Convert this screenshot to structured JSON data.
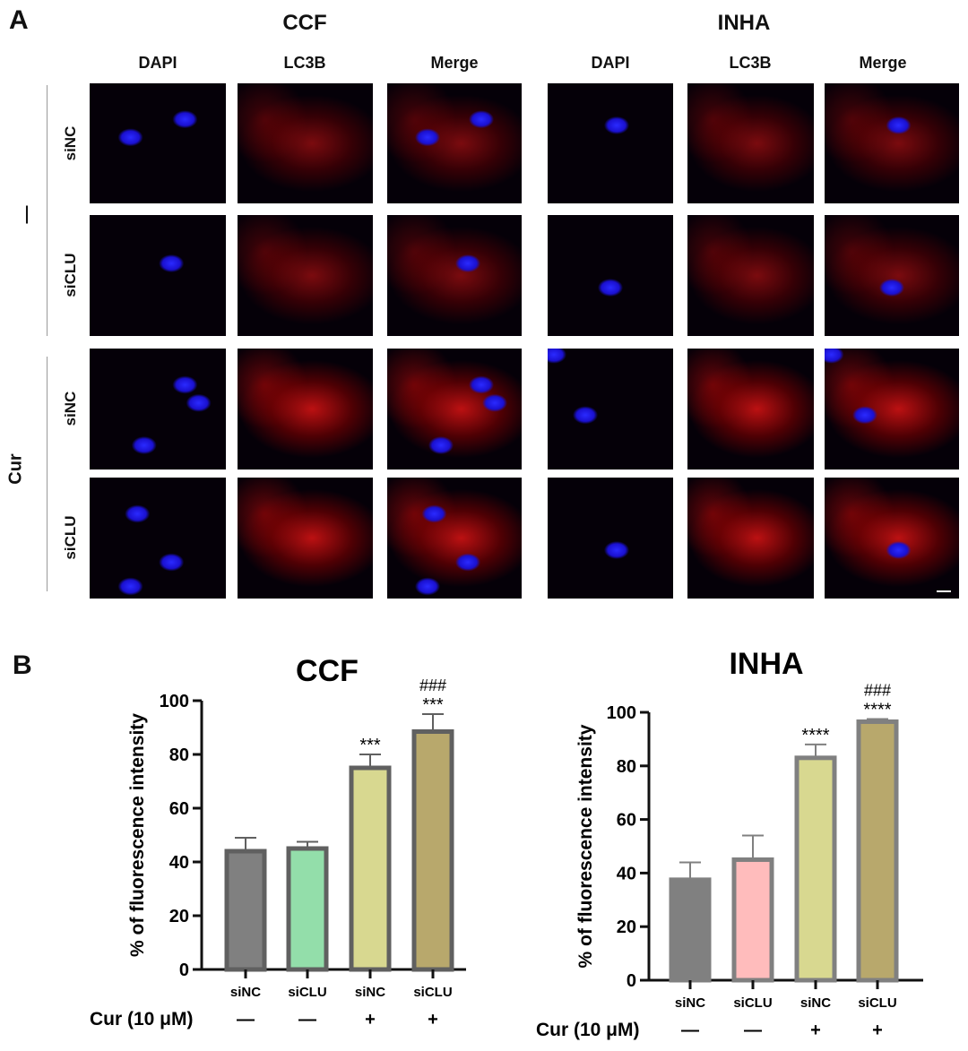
{
  "panel_a": {
    "letter": "A",
    "groups": [
      {
        "title": "CCF",
        "columns": [
          "DAPI",
          "LC3B",
          "Merge"
        ]
      },
      {
        "title": "INHA",
        "columns": [
          "DAPI",
          "LC3B",
          "Merge"
        ]
      }
    ],
    "rows": [
      "siNC",
      "siCLU",
      "siNC",
      "siCLU"
    ],
    "treatments": [
      "—",
      "Cur"
    ]
  },
  "panel_b": {
    "letter": "B"
  },
  "chart_data": [
    {
      "type": "bar",
      "title": "CCF",
      "ylabel": "% of fluorescence intensity",
      "xlabel": "",
      "ylim": [
        0,
        100
      ],
      "yticks": [
        "0",
        "20",
        "40",
        "60",
        "80",
        "100"
      ],
      "categories": [
        "siNC",
        "siCLU",
        "siNC",
        "siCLU"
      ],
      "treatment_label": "Cur (10 μM)",
      "treatment": [
        "—",
        "—",
        "+",
        "+"
      ],
      "values": [
        44,
        45,
        75,
        88.5
      ],
      "error_upper": [
        49,
        47.5,
        80,
        95
      ],
      "significance": [
        "",
        "",
        "***",
        "***"
      ],
      "significance2": [
        "",
        "",
        "",
        "###"
      ],
      "colors": [
        "#808080",
        "#93deaa",
        "#d8d890",
        "#b8a86c"
      ],
      "edge_color": "#606060"
    },
    {
      "type": "bar",
      "title": "INHA",
      "ylabel": "% of fluorescence intensity",
      "xlabel": "",
      "ylim": [
        0,
        100
      ],
      "yticks": [
        "0",
        "20",
        "40",
        "60",
        "80",
        "100"
      ],
      "categories": [
        "siNC",
        "siCLU",
        "siNC",
        "siCLU"
      ],
      "treatment_label": "Cur (10 μM)",
      "treatment": [
        "—",
        "—",
        "+",
        "+"
      ],
      "values": [
        37.5,
        45,
        83,
        96.5
      ],
      "error_upper": [
        44,
        54,
        88,
        97.5
      ],
      "significance": [
        "",
        "",
        "****",
        "****"
      ],
      "significance2": [
        "",
        "",
        "",
        "###"
      ],
      "colors": [
        "#808080",
        "#ffbcbc",
        "#d8d890",
        "#b8a86c"
      ],
      "edge_color": "#808080"
    }
  ]
}
